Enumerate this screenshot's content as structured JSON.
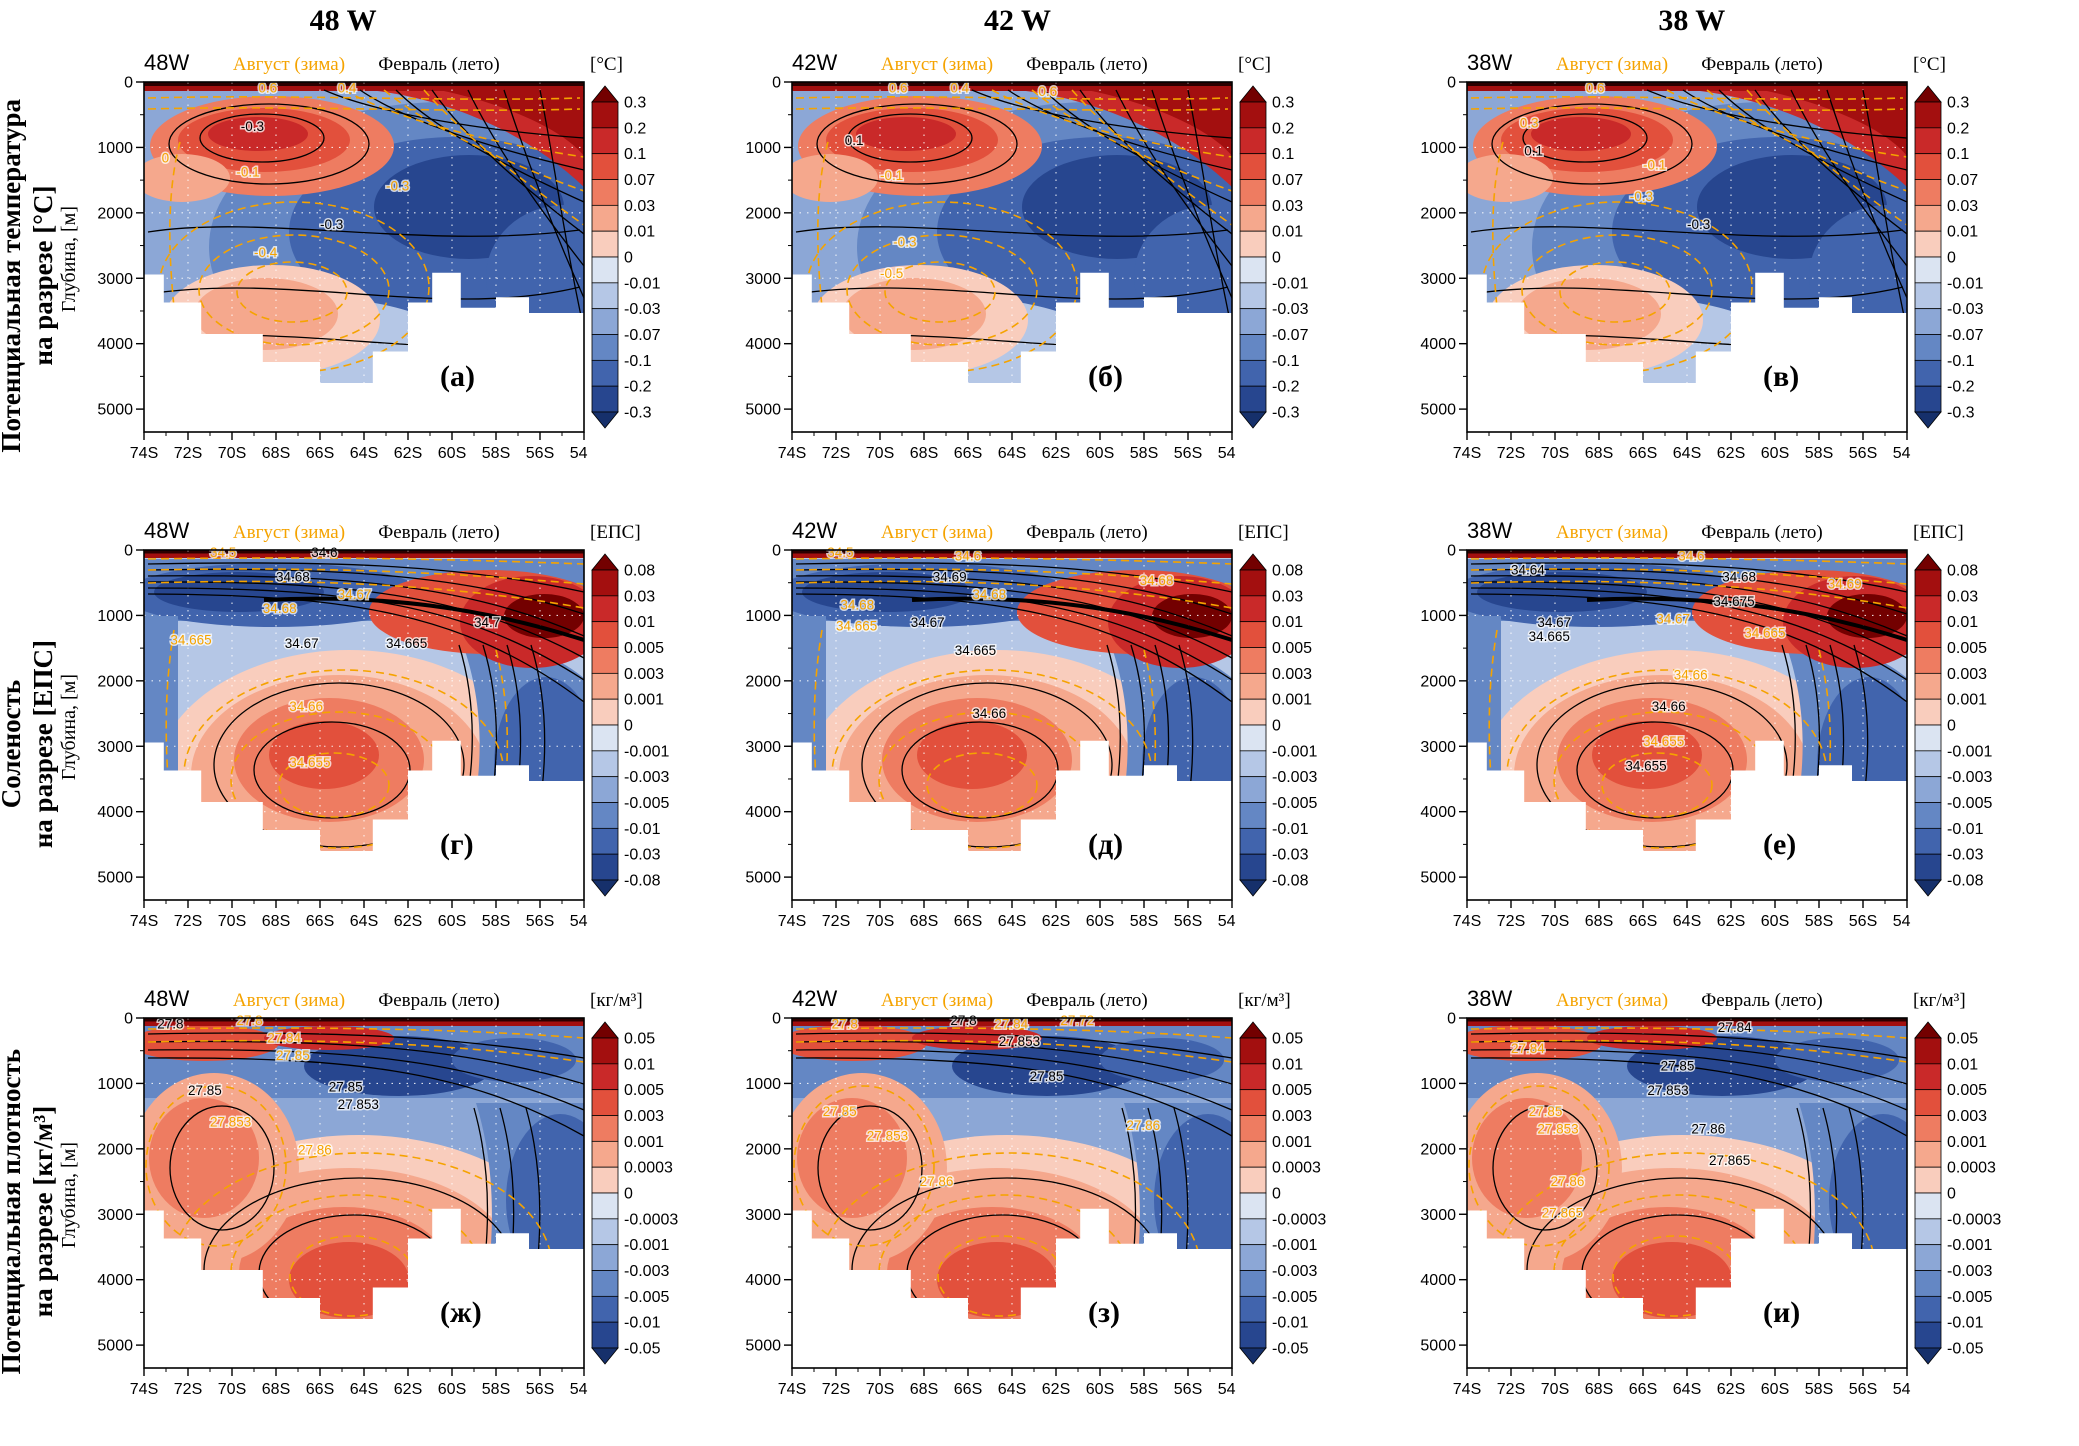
{
  "columns": [
    {
      "title": "48 W"
    },
    {
      "title": "42 W"
    },
    {
      "title": "38 W"
    }
  ],
  "rows": [
    {
      "title_line1": "Потенциальная температура",
      "title_line2": "на разрезе [°C]",
      "units": "[°C]",
      "colorbar": [
        "0.3",
        "0.2",
        "0.1",
        "0.07",
        "0.03",
        "0.01",
        "0",
        "-0.01",
        "-0.03",
        "-0.07",
        "-0.1",
        "-0.2",
        "-0.3"
      ]
    },
    {
      "title_line1": "Соленость",
      "title_line2": "на разрезе [ЕПС]",
      "units": "[ЕПС]",
      "colorbar": [
        "0.08",
        "0.03",
        "0.01",
        "0.005",
        "0.003",
        "0.001",
        "0",
        "-0.001",
        "-0.003",
        "-0.005",
        "-0.01",
        "-0.03",
        "-0.08"
      ]
    },
    {
      "title_line1": "Потенциальная плотность",
      "title_line2": "на разрезе [кг/м³]",
      "units": "[кг/м³]",
      "colorbar": [
        "0.05",
        "0.01",
        "0.005",
        "0.003",
        "0.001",
        "0.0003",
        "0",
        "-0.0003",
        "-0.001",
        "-0.003",
        "-0.005",
        "-0.01",
        "-0.05"
      ]
    }
  ],
  "legend": {
    "winter": "Август (зима)",
    "summer": "Февраль (лето)"
  },
  "axes": {
    "ylabel": "Глубина, [м]",
    "yticks": [
      "0",
      "1000",
      "2000",
      "3000",
      "4000",
      "5000"
    ],
    "xticks": [
      "74S",
      "72S",
      "70S",
      "68S",
      "66S",
      "64S",
      "62S",
      "60S",
      "58S",
      "56S",
      "54S"
    ]
  },
  "palette": {
    "orange_contour": "#F5A300",
    "black_contour": "#000000",
    "colorbar": [
      "#730000",
      "#A30F0F",
      "#C92929",
      "#E2503C",
      "#EE7C61",
      "#F5A88D",
      "#F9CDBD",
      "#DBE4F2",
      "#B5C7E6",
      "#8CA7D6",
      "#6487C4",
      "#4164AD",
      "#27468F",
      "#16306B"
    ]
  },
  "chart_data": {
    "type": "heatmap",
    "description": "3x3 grid of ocean vertical sections (depth vs latitude 74S-54S) along 48W, 42W, 38W: filled anomaly fields of potential temperature [°C], salinity [ЕПС], potential density [кг/м³], overlaid with August (winter, orange dashed) and February (summer, black solid) contours; white areas are bottom topography.",
    "x_ticks": [
      "74S",
      "72S",
      "70S",
      "68S",
      "66S",
      "64S",
      "62S",
      "60S",
      "58S",
      "56S",
      "54S"
    ],
    "depth_ticks_m": [
      0,
      1000,
      2000,
      3000,
      4000,
      5000
    ],
    "panels": [
      {
        "row": 0,
        "col": 0,
        "corner": "48W",
        "letter": "(а)",
        "contour_labels": [
          {
            "t": "0.6",
            "x": 26,
            "y": 3,
            "c": "o"
          },
          {
            "t": "0.4",
            "x": 44,
            "y": 3,
            "c": "o"
          },
          {
            "t": "-0.3",
            "x": 22,
            "y": 14,
            "c": "b"
          },
          {
            "t": "0",
            "x": 4,
            "y": 23,
            "c": "o"
          },
          {
            "t": "-0.1",
            "x": 21,
            "y": 27,
            "c": "o"
          },
          {
            "t": "-0.3",
            "x": 55,
            "y": 31,
            "c": "o"
          },
          {
            "t": "-0.3",
            "x": 40,
            "y": 42,
            "c": "b"
          },
          {
            "t": "-0.4",
            "x": 25,
            "y": 50,
            "c": "o"
          }
        ]
      },
      {
        "row": 0,
        "col": 1,
        "corner": "42W",
        "letter": "(б)",
        "contour_labels": [
          {
            "t": "0.6",
            "x": 22,
            "y": 3,
            "c": "o"
          },
          {
            "t": "0.4",
            "x": 36,
            "y": 3,
            "c": "o"
          },
          {
            "t": "0.6",
            "x": 56,
            "y": 4,
            "c": "o"
          },
          {
            "t": "0.1",
            "x": 12,
            "y": 18,
            "c": "b"
          },
          {
            "t": "-0.1",
            "x": 20,
            "y": 28,
            "c": "o"
          },
          {
            "t": "-0.3",
            "x": 23,
            "y": 47,
            "c": "o"
          },
          {
            "t": "-0.5",
            "x": 20,
            "y": 56,
            "c": "o"
          }
        ]
      },
      {
        "row": 0,
        "col": 2,
        "corner": "38W",
        "letter": "(в)",
        "contour_labels": [
          {
            "t": "0.6",
            "x": 27,
            "y": 3,
            "c": "o"
          },
          {
            "t": "0.3",
            "x": 12,
            "y": 13,
            "c": "o"
          },
          {
            "t": "0.1",
            "x": 13,
            "y": 21,
            "c": "b"
          },
          {
            "t": "-0.1",
            "x": 40,
            "y": 25,
            "c": "o"
          },
          {
            "t": "-0.3",
            "x": 37,
            "y": 34,
            "c": "o"
          },
          {
            "t": "-0.3",
            "x": 50,
            "y": 42,
            "c": "b"
          }
        ]
      },
      {
        "row": 1,
        "col": 0,
        "corner": "48W",
        "letter": "(г)",
        "contour_labels": [
          {
            "t": "34.5",
            "x": 15,
            "y": 2,
            "c": "o"
          },
          {
            "t": "34.6",
            "x": 38,
            "y": 2,
            "c": "b"
          },
          {
            "t": "34.68",
            "x": 30,
            "y": 9,
            "c": "b"
          },
          {
            "t": "34.67",
            "x": 44,
            "y": 14,
            "c": "o"
          },
          {
            "t": "34.68",
            "x": 27,
            "y": 18,
            "c": "o"
          },
          {
            "t": "34.665",
            "x": 6,
            "y": 27,
            "c": "o"
          },
          {
            "t": "34.67",
            "x": 32,
            "y": 28,
            "c": "b"
          },
          {
            "t": "34.665",
            "x": 55,
            "y": 28,
            "c": "b"
          },
          {
            "t": "34.7",
            "x": 75,
            "y": 22,
            "c": "b"
          },
          {
            "t": "34.66",
            "x": 33,
            "y": 46,
            "c": "o"
          },
          {
            "t": "34.655",
            "x": 33,
            "y": 62,
            "c": "o"
          }
        ]
      },
      {
        "row": 1,
        "col": 1,
        "corner": "42W",
        "letter": "(д)",
        "contour_labels": [
          {
            "t": "34.5",
            "x": 8,
            "y": 2,
            "c": "o"
          },
          {
            "t": "34.6",
            "x": 37,
            "y": 3,
            "c": "o"
          },
          {
            "t": "34.69",
            "x": 32,
            "y": 9,
            "c": "b"
          },
          {
            "t": "34.68",
            "x": 41,
            "y": 14,
            "c": "o"
          },
          {
            "t": "34.68",
            "x": 11,
            "y": 17,
            "c": "o"
          },
          {
            "t": "34.665",
            "x": 10,
            "y": 23,
            "c": "o"
          },
          {
            "t": "34.67",
            "x": 27,
            "y": 22,
            "c": "b"
          },
          {
            "t": "34.665",
            "x": 37,
            "y": 30,
            "c": "b"
          },
          {
            "t": "34.68",
            "x": 79,
            "y": 10,
            "c": "o"
          },
          {
            "t": "34.66",
            "x": 41,
            "y": 48,
            "c": "b"
          }
        ]
      },
      {
        "row": 1,
        "col": 2,
        "corner": "38W",
        "letter": "(е)",
        "contour_labels": [
          {
            "t": "34.64",
            "x": 10,
            "y": 7,
            "c": "b"
          },
          {
            "t": "34.6",
            "x": 48,
            "y": 3,
            "c": "o"
          },
          {
            "t": "34.68",
            "x": 58,
            "y": 9,
            "c": "b"
          },
          {
            "t": "34.69",
            "x": 82,
            "y": 11,
            "c": "o"
          },
          {
            "t": "34.675",
            "x": 56,
            "y": 16,
            "c": "b"
          },
          {
            "t": "34.67",
            "x": 16,
            "y": 22,
            "c": "b"
          },
          {
            "t": "34.665",
            "x": 14,
            "y": 26,
            "c": "b"
          },
          {
            "t": "34.67",
            "x": 43,
            "y": 21,
            "c": "o"
          },
          {
            "t": "34.665",
            "x": 63,
            "y": 25,
            "c": "o"
          },
          {
            "t": "34.66",
            "x": 47,
            "y": 37,
            "c": "o"
          },
          {
            "t": "34.66",
            "x": 42,
            "y": 46,
            "c": "b"
          },
          {
            "t": "34.655",
            "x": 40,
            "y": 56,
            "c": "o"
          },
          {
            "t": "34.655",
            "x": 36,
            "y": 63,
            "c": "b"
          }
        ]
      },
      {
        "row": 2,
        "col": 0,
        "corner": "48W",
        "letter": "(ж)",
        "contour_labels": [
          {
            "t": "27.8",
            "x": 3,
            "y": 3,
            "c": "b"
          },
          {
            "t": "27.8",
            "x": 21,
            "y": 2,
            "c": "o"
          },
          {
            "t": "27.84",
            "x": 28,
            "y": 7,
            "c": "o"
          },
          {
            "t": "27.85",
            "x": 30,
            "y": 12,
            "c": "o"
          },
          {
            "t": "27.85",
            "x": 10,
            "y": 22,
            "c": "b"
          },
          {
            "t": "27.85",
            "x": 42,
            "y": 21,
            "c": "b"
          },
          {
            "t": "27.853",
            "x": 44,
            "y": 26,
            "c": "b"
          },
          {
            "t": "27.853",
            "x": 15,
            "y": 31,
            "c": "o"
          },
          {
            "t": "27.86",
            "x": 35,
            "y": 39,
            "c": "o"
          }
        ]
      },
      {
        "row": 2,
        "col": 1,
        "corner": "42W",
        "letter": "(з)",
        "contour_labels": [
          {
            "t": "27.8",
            "x": 9,
            "y": 3,
            "c": "o"
          },
          {
            "t": "27.8",
            "x": 36,
            "y": 2,
            "c": "b"
          },
          {
            "t": "27.84",
            "x": 46,
            "y": 3,
            "c": "o"
          },
          {
            "t": "27.72",
            "x": 61,
            "y": 2,
            "c": "o"
          },
          {
            "t": "27.853",
            "x": 47,
            "y": 8,
            "c": "b"
          },
          {
            "t": "27.85",
            "x": 54,
            "y": 18,
            "c": "b"
          },
          {
            "t": "27.85",
            "x": 7,
            "y": 28,
            "c": "o"
          },
          {
            "t": "27.853",
            "x": 17,
            "y": 35,
            "c": "o"
          },
          {
            "t": "27.86",
            "x": 29,
            "y": 48,
            "c": "o"
          },
          {
            "t": "27.86",
            "x": 76,
            "y": 32,
            "c": "o"
          }
        ]
      },
      {
        "row": 2,
        "col": 2,
        "corner": "38W",
        "letter": "(и)",
        "contour_labels": [
          {
            "t": "27.84",
            "x": 10,
            "y": 10,
            "c": "o"
          },
          {
            "t": "27.84",
            "x": 57,
            "y": 4,
            "c": "b"
          },
          {
            "t": "27.85",
            "x": 44,
            "y": 15,
            "c": "b"
          },
          {
            "t": "27.853",
            "x": 41,
            "y": 22,
            "c": "b"
          },
          {
            "t": "27.85",
            "x": 14,
            "y": 28,
            "c": "o"
          },
          {
            "t": "27.853",
            "x": 16,
            "y": 33,
            "c": "o"
          },
          {
            "t": "27.86",
            "x": 51,
            "y": 33,
            "c": "b"
          },
          {
            "t": "27.865",
            "x": 55,
            "y": 42,
            "c": "b"
          },
          {
            "t": "27.86",
            "x": 19,
            "y": 48,
            "c": "o"
          },
          {
            "t": "27.865",
            "x": 17,
            "y": 57,
            "c": "o"
          }
        ]
      }
    ]
  }
}
